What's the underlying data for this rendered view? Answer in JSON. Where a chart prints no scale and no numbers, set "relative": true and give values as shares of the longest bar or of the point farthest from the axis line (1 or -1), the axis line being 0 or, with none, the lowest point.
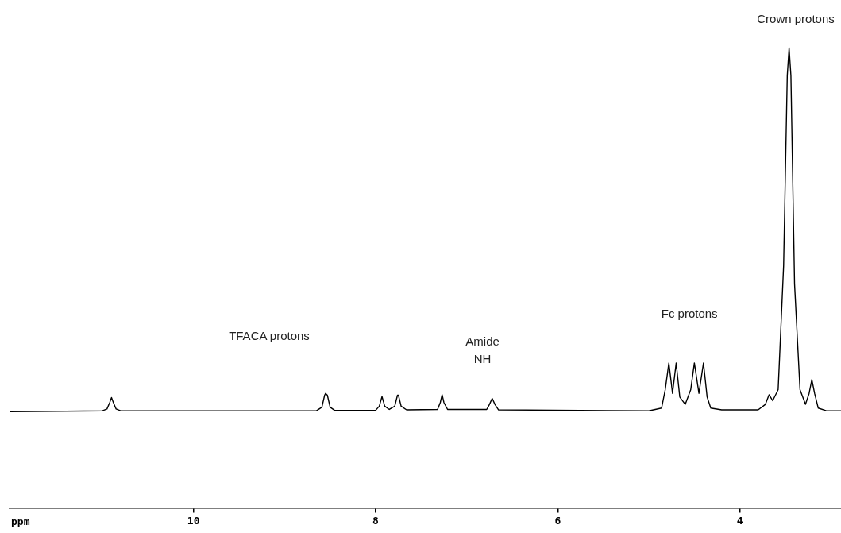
{
  "chart_data": {
    "type": "line",
    "relative": true,
    "xlabel": "ppm",
    "xlim": [
      12.02,
      2.89
    ],
    "xticks": [
      10,
      8,
      6,
      4
    ],
    "grid": false,
    "legend": false,
    "marker": "none",
    "line_style": "solid",
    "annotations": [
      "TFACA protons",
      "Amide NH",
      "Fc protons",
      "Crown protons"
    ],
    "series": [
      {
        "color": "#000000",
        "x": [
          12.02,
          11.0,
          10.95,
          10.92,
          10.9,
          10.88,
          10.85,
          10.8,
          8.65,
          8.59,
          8.56,
          8.55,
          8.53,
          8.5,
          8.45,
          8.0,
          7.96,
          7.93,
          7.9,
          7.85,
          7.79,
          7.76,
          7.75,
          7.72,
          7.66,
          7.32,
          7.29,
          7.27,
          7.25,
          7.21,
          6.78,
          6.75,
          6.72,
          6.69,
          6.65,
          5.0,
          4.86,
          4.82,
          4.78,
          4.74,
          4.7,
          4.66,
          4.6,
          4.54,
          4.5,
          4.45,
          4.4,
          4.36,
          4.32,
          4.2,
          3.8,
          3.72,
          3.68,
          3.64,
          3.58,
          3.52,
          3.48,
          3.46,
          3.44,
          3.4,
          3.34,
          3.28,
          3.24,
          3.21,
          3.18,
          3.14,
          3.05,
          2.89
        ],
        "values": [
          0.209,
          0.211,
          0.215,
          0.229,
          0.24,
          0.229,
          0.215,
          0.211,
          0.211,
          0.219,
          0.245,
          0.249,
          0.245,
          0.219,
          0.212,
          0.212,
          0.221,
          0.242,
          0.221,
          0.214,
          0.221,
          0.245,
          0.245,
          0.221,
          0.213,
          0.214,
          0.229,
          0.246,
          0.229,
          0.214,
          0.214,
          0.225,
          0.238,
          0.225,
          0.213,
          0.211,
          0.217,
          0.257,
          0.315,
          0.249,
          0.315,
          0.241,
          0.225,
          0.257,
          0.315,
          0.249,
          0.315,
          0.241,
          0.217,
          0.213,
          0.213,
          0.225,
          0.246,
          0.233,
          0.257,
          0.527,
          0.94,
          1,
          0.94,
          0.487,
          0.257,
          0.225,
          0.249,
          0.279,
          0.249,
          0.217,
          0.211,
          0.211
        ]
      }
    ]
  }
}
